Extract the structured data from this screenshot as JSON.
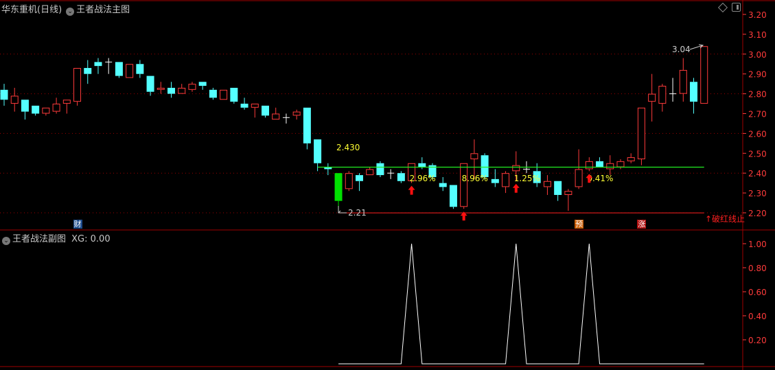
{
  "header": {
    "stock_name": "华东重机(日线)",
    "indicator_main": "王者战法主图"
  },
  "sub_header": {
    "indicator_sub": "王者战法副图",
    "xg_readout": "XG: 0.00"
  },
  "toolbar_icons": [
    "diamond-icon",
    "panel-toggle-icon"
  ],
  "colors": {
    "background": "#000000",
    "up": "#ff3b3b",
    "down": "#54ffff",
    "limit_down": "#00e000",
    "doji": "#ffffff",
    "support_line": "#22ee22",
    "stop_line": "#ff2020",
    "axis": "#ff3b3b",
    "label_yellow": "#ffff33"
  },
  "chart_data": [
    {
      "type": "candlestick",
      "title": "王者战法主图",
      "ylim": [
        2.17,
        3.24
      ],
      "y_ticks": [
        "3.20",
        "3.10",
        "3.00",
        "2.90",
        "2.80",
        "2.70",
        "2.60",
        "2.50",
        "2.40",
        "2.30",
        "2.20"
      ],
      "y_tick_values": [
        3.2,
        3.1,
        3.0,
        2.9,
        2.8,
        2.7,
        2.6,
        2.5,
        2.4,
        2.3,
        2.2
      ],
      "grid": "dotted at 3.00, 2.80, 2.60, 2.40, 2.20",
      "ohlc": [
        [
          2.82,
          2.85,
          2.74,
          2.77
        ],
        [
          2.75,
          2.83,
          2.71,
          2.79
        ],
        [
          2.77,
          2.77,
          2.67,
          2.71
        ],
        [
          2.74,
          2.74,
          2.69,
          2.7
        ],
        [
          2.7,
          2.73,
          2.69,
          2.73
        ],
        [
          2.71,
          2.78,
          2.7,
          2.75
        ],
        [
          2.75,
          2.77,
          2.7,
          2.77
        ],
        [
          2.76,
          2.93,
          2.74,
          2.93
        ],
        [
          2.93,
          2.97,
          2.85,
          2.9
        ],
        [
          2.96,
          2.98,
          2.9,
          2.94
        ],
        [
          2.96,
          2.98,
          2.9,
          2.96
        ],
        [
          2.96,
          2.96,
          2.88,
          2.89
        ],
        [
          2.88,
          2.95,
          2.88,
          2.95
        ],
        [
          2.95,
          2.97,
          2.88,
          2.9
        ],
        [
          2.89,
          2.89,
          2.79,
          2.81
        ],
        [
          2.82,
          2.86,
          2.8,
          2.83
        ],
        [
          2.83,
          2.86,
          2.78,
          2.8
        ],
        [
          2.8,
          2.85,
          2.8,
          2.83
        ],
        [
          2.82,
          2.86,
          2.81,
          2.85
        ],
        [
          2.86,
          2.86,
          2.82,
          2.84
        ],
        [
          2.82,
          2.83,
          2.77,
          2.78
        ],
        [
          2.77,
          2.82,
          2.77,
          2.82
        ],
        [
          2.83,
          2.83,
          2.75,
          2.76
        ],
        [
          2.75,
          2.78,
          2.72,
          2.73
        ],
        [
          2.73,
          2.75,
          2.68,
          2.75
        ],
        [
          2.74,
          2.74,
          2.68,
          2.69
        ],
        [
          2.67,
          2.73,
          2.67,
          2.7
        ],
        [
          2.68,
          2.7,
          2.65,
          2.68
        ],
        [
          2.69,
          2.72,
          2.67,
          2.71
        ],
        [
          2.73,
          2.73,
          2.52,
          2.55
        ],
        [
          2.57,
          2.57,
          2.41,
          2.45
        ],
        [
          2.43,
          2.45,
          2.39,
          2.42
        ],
        [
          2.4,
          2.4,
          2.21,
          2.26
        ],
        [
          2.32,
          2.41,
          2.31,
          2.4
        ],
        [
          2.39,
          2.4,
          2.31,
          2.36
        ],
        [
          2.39,
          2.43,
          2.39,
          2.42
        ],
        [
          2.45,
          2.46,
          2.38,
          2.39
        ],
        [
          2.4,
          2.42,
          2.37,
          2.4
        ],
        [
          2.4,
          2.41,
          2.35,
          2.36
        ],
        [
          2.36,
          2.45,
          2.35,
          2.45
        ],
        [
          2.45,
          2.48,
          2.42,
          2.43
        ],
        [
          2.44,
          2.45,
          2.37,
          2.38
        ],
        [
          2.35,
          2.38,
          2.31,
          2.33
        ],
        [
          2.34,
          2.34,
          2.22,
          2.23
        ],
        [
          2.23,
          2.45,
          2.22,
          2.45
        ],
        [
          2.47,
          2.57,
          2.37,
          2.5
        ],
        [
          2.49,
          2.5,
          2.37,
          2.38
        ],
        [
          2.37,
          2.42,
          2.33,
          2.35
        ],
        [
          2.33,
          2.41,
          2.3,
          2.4
        ],
        [
          2.41,
          2.51,
          2.36,
          2.44
        ],
        [
          2.42,
          2.46,
          2.4,
          2.42
        ],
        [
          2.41,
          2.45,
          2.33,
          2.35
        ],
        [
          2.33,
          2.39,
          2.29,
          2.36
        ],
        [
          2.36,
          2.36,
          2.26,
          2.29
        ],
        [
          2.29,
          2.32,
          2.21,
          2.31
        ],
        [
          2.33,
          2.52,
          2.32,
          2.42
        ],
        [
          2.42,
          2.48,
          2.41,
          2.46
        ],
        [
          2.46,
          2.48,
          2.43,
          2.43
        ],
        [
          2.42,
          2.49,
          2.39,
          2.45
        ],
        [
          2.43,
          2.47,
          2.42,
          2.46
        ],
        [
          2.46,
          2.5,
          2.45,
          2.48
        ],
        [
          2.47,
          2.73,
          2.44,
          2.73
        ],
        [
          2.76,
          2.9,
          2.66,
          2.8
        ],
        [
          2.75,
          2.85,
          2.71,
          2.84
        ],
        [
          2.8,
          2.88,
          2.76,
          2.8
        ],
        [
          2.8,
          2.98,
          2.76,
          2.92
        ],
        [
          2.86,
          2.88,
          2.7,
          2.76
        ],
        [
          2.75,
          3.04,
          2.75,
          3.04
        ]
      ],
      "limit_down_index": 32,
      "support_line": {
        "value": 2.43,
        "label": "2.430",
        "from_index": 31
      },
      "stop_line": {
        "value": 2.21,
        "from_index": 32
      },
      "annotations": {
        "low_label": "2.21",
        "high_label": "3.04",
        "stop_text": "↑破红线止",
        "percent_labels": [
          {
            "index": 39,
            "text": "2.96%"
          },
          {
            "index": 44,
            "text": "8.96%"
          },
          {
            "index": 49,
            "text": "1.25%"
          },
          {
            "index": 56,
            "text": "0.41%"
          }
        ],
        "up_arrows": [
          39,
          44,
          49,
          56
        ],
        "tags": [
          {
            "index": 7,
            "text": "财",
            "color": "#1e4c8c"
          },
          {
            "index": 55,
            "text": "预",
            "color": "#c85a00"
          },
          {
            "index": 61,
            "text": "涨",
            "color": "#b01010"
          }
        ]
      }
    },
    {
      "type": "line",
      "title": "王者战法副图",
      "series": [
        {
          "name": "XG",
          "start_index": 32,
          "values": [
            0,
            0,
            0,
            0,
            0,
            0,
            0,
            1,
            0,
            0,
            0,
            0,
            0,
            0,
            0,
            0,
            0,
            1,
            0,
            0,
            0,
            0,
            0,
            0,
            1,
            0,
            0,
            0,
            0,
            0,
            0,
            0,
            0,
            0,
            0,
            0
          ]
        }
      ],
      "ylim": [
        0,
        1.08
      ],
      "y_ticks": [
        "1.00",
        "0.80",
        "0.60",
        "0.40",
        "0.20"
      ],
      "y_tick_values": [
        1.0,
        0.8,
        0.6,
        0.4,
        0.2
      ]
    }
  ]
}
